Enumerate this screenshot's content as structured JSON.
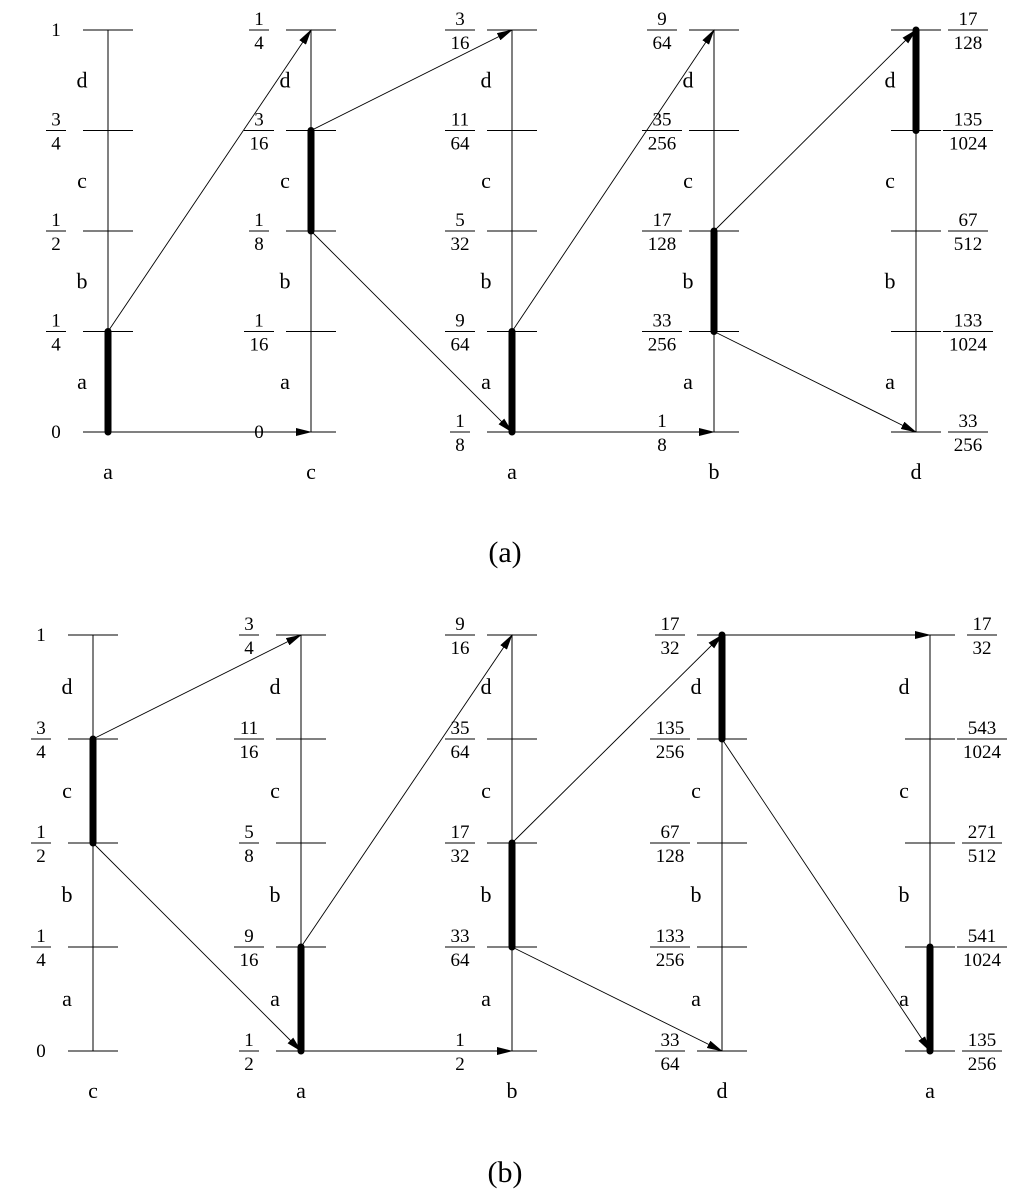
{
  "panels": [
    {
      "caption": "(a)",
      "columns": [
        {
          "symbol": "a",
          "interval_letters": [
            "a",
            "b",
            "c",
            "d"
          ],
          "values": [
            "0",
            "1/4",
            "1/2",
            "3/4",
            "1"
          ],
          "label_side": "left",
          "selected": 0
        },
        {
          "symbol": "c",
          "interval_letters": [
            "a",
            "b",
            "c",
            "d"
          ],
          "values": [
            "0",
            "1/16",
            "1/8",
            "3/16",
            "1/4"
          ],
          "label_side": "left",
          "selected": 2
        },
        {
          "symbol": "a",
          "interval_letters": [
            "a",
            "b",
            "c",
            "d"
          ],
          "values": [
            "1/8",
            "9/64",
            "5/32",
            "11/64",
            "3/16"
          ],
          "label_side": "left",
          "selected": 0
        },
        {
          "symbol": "b",
          "interval_letters": [
            "a",
            "b",
            "c",
            "d"
          ],
          "values": [
            "1/8",
            "33/256",
            "17/128",
            "35/256",
            "9/64"
          ],
          "label_side": "left",
          "selected": 1
        },
        {
          "symbol": "d",
          "interval_letters": [
            "a",
            "b",
            "c",
            "d"
          ],
          "values": [
            "33/256",
            "133/1024",
            "67/512",
            "135/1024",
            "17/128"
          ],
          "label_side": "right",
          "selected": 3
        }
      ]
    },
    {
      "caption": "(b)",
      "columns": [
        {
          "symbol": "c",
          "interval_letters": [
            "a",
            "b",
            "c",
            "d"
          ],
          "values": [
            "0",
            "1/4",
            "1/2",
            "3/4",
            "1"
          ],
          "label_side": "left",
          "selected": 2
        },
        {
          "symbol": "a",
          "interval_letters": [
            "a",
            "b",
            "c",
            "d"
          ],
          "values": [
            "1/2",
            "9/16",
            "5/8",
            "11/16",
            "3/4"
          ],
          "label_side": "left",
          "selected": 0
        },
        {
          "symbol": "b",
          "interval_letters": [
            "a",
            "b",
            "c",
            "d"
          ],
          "values": [
            "1/2",
            "33/64",
            "17/32",
            "35/64",
            "9/16"
          ],
          "label_side": "left",
          "selected": 1
        },
        {
          "symbol": "d",
          "interval_letters": [
            "a",
            "b",
            "c",
            "d"
          ],
          "values": [
            "33/64",
            "133/256",
            "67/128",
            "135/256",
            "17/32"
          ],
          "label_side": "left",
          "selected": 3
        },
        {
          "symbol": "a",
          "interval_letters": [
            "a",
            "b",
            "c",
            "d"
          ],
          "values": [
            "135/256",
            "541/1024",
            "271/512",
            "543/1024",
            "17/32"
          ],
          "label_side": "right",
          "selected": 0
        }
      ]
    }
  ]
}
